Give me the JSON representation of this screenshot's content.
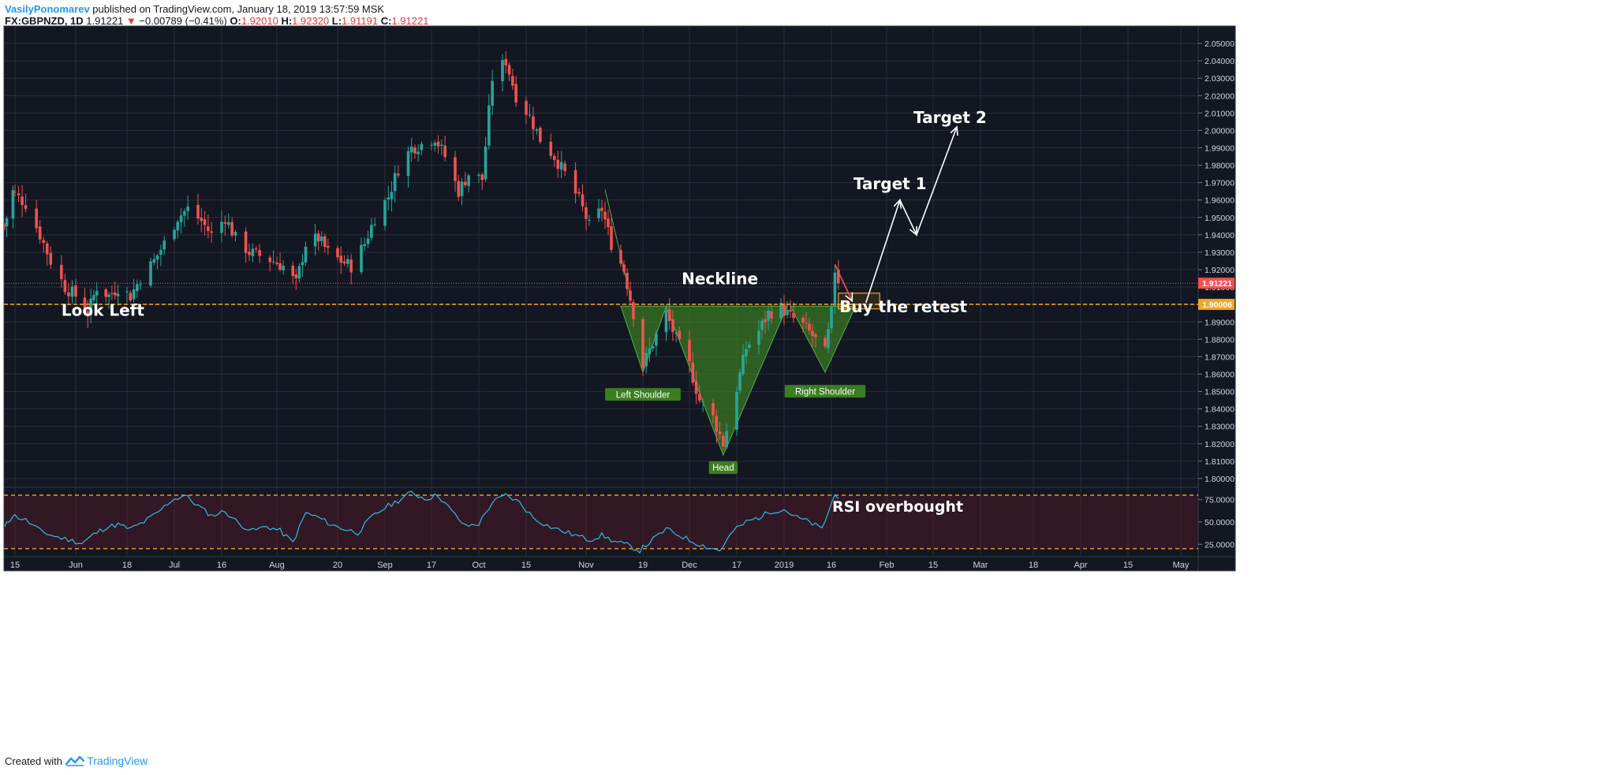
{
  "header": {
    "author": "VasilyPonomarev",
    "published": "published on TradingView.com, January 18, 2019 13:57:59 MSK",
    "symbol": "FX:GBPNZD, 1D",
    "last": "1.91221",
    "change": "−0.00789 (−0.41%)",
    "o_label": "O:",
    "o_value": "1.92010",
    "h_label": "H:",
    "h_value": "1.92320",
    "l_label": "L:",
    "l_value": "1.91191",
    "c_label": "C:",
    "c_value": "1.91221"
  },
  "footer": {
    "created": "Created with",
    "brand": "TradingView"
  },
  "colors": {
    "background": "#131722",
    "grid": "#2a2e39",
    "up": "#26a69a",
    "down": "#ef5350",
    "rsi_line": "#2dbce6",
    "level": "#f5a623",
    "pattern_fill": "#3c7d22",
    "text": "#d1d4dc"
  },
  "chart_data": {
    "type": "candlestick",
    "symbol": "FX:GBPNZD",
    "interval": "1D",
    "ylim": [
      1.795,
      2.055
    ],
    "price_ticks": [
      "1.80000",
      "1.81000",
      "1.82000",
      "1.83000",
      "1.84000",
      "1.85000",
      "1.86000",
      "1.87000",
      "1.88000",
      "1.89000",
      "1.90000",
      "1.91000",
      "1.92000",
      "1.93000",
      "1.94000",
      "1.95000",
      "1.96000",
      "1.97000",
      "1.98000",
      "1.99000",
      "2.00000",
      "2.01000",
      "2.02000",
      "2.03000",
      "2.04000",
      "2.05000"
    ],
    "price_tags": [
      {
        "value": 1.91221,
        "label": "1.91221",
        "color": "#ef5350"
      },
      {
        "value": 1.90006,
        "label": "1.90006",
        "color": "#f5a623"
      }
    ],
    "x_ticks": [
      {
        "label": "15",
        "date": "2018-05-15"
      },
      {
        "label": "Jun",
        "date": "2018-06-01"
      },
      {
        "label": "18",
        "date": "2018-06-18"
      },
      {
        "label": "Jul",
        "date": "2018-07-02"
      },
      {
        "label": "16",
        "date": "2018-07-16"
      },
      {
        "label": "Aug",
        "date": "2018-08-01"
      },
      {
        "label": "20",
        "date": "2018-08-20"
      },
      {
        "label": "Sep",
        "date": "2018-09-03"
      },
      {
        "label": "17",
        "date": "2018-09-17"
      },
      {
        "label": "Oct",
        "date": "2018-10-01"
      },
      {
        "label": "15",
        "date": "2018-10-15"
      },
      {
        "label": "Nov",
        "date": "2018-11-01"
      },
      {
        "label": "19",
        "date": "2018-11-19"
      },
      {
        "label": "Dec",
        "date": "2018-12-03"
      },
      {
        "label": "17",
        "date": "2018-12-17"
      },
      {
        "label": "2019",
        "date": "2019-01-01"
      },
      {
        "label": "16",
        "date": "2019-01-16"
      },
      {
        "label": "Feb",
        "date": "2019-02-01"
      },
      {
        "label": "15",
        "date": "2019-02-15"
      },
      {
        "label": "Mar",
        "date": "2019-03-01"
      },
      {
        "label": "18",
        "date": "2019-03-18"
      },
      {
        "label": "Apr",
        "date": "2019-04-01"
      },
      {
        "label": "15",
        "date": "2019-04-15"
      },
      {
        "label": "May",
        "date": "2019-05-01"
      }
    ],
    "close_path": [
      [
        "2018-05-10",
        1.945
      ],
      [
        "2018-05-14",
        1.965
      ],
      [
        "2018-05-18",
        1.958
      ],
      [
        "2018-05-22",
        1.94
      ],
      [
        "2018-05-25",
        1.925
      ],
      [
        "2018-05-29",
        1.91
      ],
      [
        "2018-06-01",
        1.905
      ],
      [
        "2018-06-05",
        1.895
      ],
      [
        "2018-06-08",
        1.91
      ],
      [
        "2018-06-12",
        1.905
      ],
      [
        "2018-06-15",
        1.91
      ],
      [
        "2018-06-19",
        1.905
      ],
      [
        "2018-06-22",
        1.915
      ],
      [
        "2018-06-26",
        1.925
      ],
      [
        "2018-06-29",
        1.935
      ],
      [
        "2018-07-03",
        1.95
      ],
      [
        "2018-07-06",
        1.955
      ],
      [
        "2018-07-10",
        1.948
      ],
      [
        "2018-07-13",
        1.94
      ],
      [
        "2018-07-17",
        1.95
      ],
      [
        "2018-07-20",
        1.938
      ],
      [
        "2018-07-24",
        1.93
      ],
      [
        "2018-07-27",
        1.928
      ],
      [
        "2018-07-31",
        1.925
      ],
      [
        "2018-08-03",
        1.922
      ],
      [
        "2018-08-07",
        1.912
      ],
      [
        "2018-08-10",
        1.935
      ],
      [
        "2018-08-14",
        1.938
      ],
      [
        "2018-08-17",
        1.93
      ],
      [
        "2018-08-21",
        1.925
      ],
      [
        "2018-08-24",
        1.922
      ],
      [
        "2018-08-28",
        1.935
      ],
      [
        "2018-08-31",
        1.95
      ],
      [
        "2018-09-04",
        1.962
      ],
      [
        "2018-09-07",
        1.978
      ],
      [
        "2018-09-11",
        1.99
      ],
      [
        "2018-09-14",
        1.992
      ],
      [
        "2018-09-18",
        1.996
      ],
      [
        "2018-09-21",
        1.985
      ],
      [
        "2018-09-25",
        1.965
      ],
      [
        "2018-09-28",
        1.975
      ],
      [
        "2018-10-02",
        1.972
      ],
      [
        "2018-10-05",
        2.03
      ],
      [
        "2018-10-09",
        2.04
      ],
      [
        "2018-10-12",
        2.02
      ],
      [
        "2018-10-16",
        2.008
      ],
      [
        "2018-10-19",
        1.995
      ],
      [
        "2018-10-23",
        1.985
      ],
      [
        "2018-10-26",
        1.975
      ],
      [
        "2018-10-30",
        1.96
      ],
      [
        "2018-11-02",
        1.945
      ],
      [
        "2018-11-06",
        1.955
      ],
      [
        "2018-11-09",
        1.935
      ],
      [
        "2018-11-13",
        1.92
      ],
      [
        "2018-11-16",
        1.895
      ],
      [
        "2018-11-19",
        1.865
      ],
      [
        "2018-11-22",
        1.878
      ],
      [
        "2018-11-26",
        1.895
      ],
      [
        "2018-11-29",
        1.88
      ],
      [
        "2018-12-03",
        1.865
      ],
      [
        "2018-12-06",
        1.845
      ],
      [
        "2018-12-10",
        1.835
      ],
      [
        "2018-12-13",
        1.82
      ],
      [
        "2018-12-17",
        1.852
      ],
      [
        "2018-12-20",
        1.875
      ],
      [
        "2018-12-24",
        1.885
      ],
      [
        "2018-12-27",
        1.895
      ],
      [
        "2018-12-31",
        1.898
      ],
      [
        "2019-01-03",
        1.893
      ],
      [
        "2019-01-07",
        1.888
      ],
      [
        "2019-01-10",
        1.882
      ],
      [
        "2019-01-14",
        1.872
      ],
      [
        "2019-01-16",
        1.895
      ],
      [
        "2019-01-17",
        1.92
      ],
      [
        "2019-01-18",
        1.91221
      ]
    ],
    "levels": [
      {
        "value": 1.90006,
        "label": "Neckline"
      },
      {
        "value": 1.91221
      }
    ],
    "pattern": "inverse head and shoulders",
    "pattern_points": {
      "left_shoulder": {
        "date": "2018-11-19",
        "price": 1.861,
        "label": "Left Shoulder"
      },
      "head": {
        "date": "2018-12-13",
        "price": 1.8135,
        "label": "Head"
      },
      "right_shoulder": {
        "date": "2019-01-14",
        "price": 1.861,
        "label": "Right Shoulder"
      }
    },
    "projection": [
      [
        "2019-01-17",
        1.923
      ],
      [
        "2019-01-22",
        1.902
      ],
      [
        "2019-01-26",
        1.901
      ],
      [
        "2019-02-05",
        1.96
      ],
      [
        "2019-02-10",
        1.94
      ],
      [
        "2019-02-22",
        2.002
      ]
    ],
    "annotations": [
      {
        "text": "Look Left",
        "date": "2018-06-10",
        "price": 1.8935
      },
      {
        "text": "Neckline",
        "date": "2018-12-12",
        "price": 1.9116
      },
      {
        "text": "Buy the retest",
        "date": "2019-02-06",
        "price": 1.8955
      },
      {
        "text": "Target 1",
        "date": "2019-02-02",
        "price": 1.9662
      },
      {
        "text": "Target 2",
        "date": "2019-02-20",
        "price": 2.0043
      }
    ],
    "retest_box": {
      "date_from": "2019-01-18",
      "date_to": "2019-01-30",
      "price_from": 1.8975,
      "price_to": 1.9065
    },
    "rsi": {
      "ylim": [
        12,
        88
      ],
      "ticks": [
        "25.0000",
        "50.0000",
        "75.0000"
      ],
      "overbought": 80,
      "oversold": 20,
      "annotation": "RSI overbought",
      "values": [
        [
          "2018-05-10",
          44
        ],
        [
          "2018-05-14",
          58
        ],
        [
          "2018-05-18",
          52
        ],
        [
          "2018-05-22",
          40
        ],
        [
          "2018-05-26",
          34
        ],
        [
          "2018-05-30",
          30
        ],
        [
          "2018-06-03",
          26
        ],
        [
          "2018-06-07",
          36
        ],
        [
          "2018-06-11",
          44
        ],
        [
          "2018-06-15",
          47
        ],
        [
          "2018-06-19",
          42
        ],
        [
          "2018-06-23",
          50
        ],
        [
          "2018-06-27",
          60
        ],
        [
          "2018-07-01",
          74
        ],
        [
          "2018-07-05",
          80
        ],
        [
          "2018-07-09",
          68
        ],
        [
          "2018-07-13",
          57
        ],
        [
          "2018-07-17",
          62
        ],
        [
          "2018-07-21",
          48
        ],
        [
          "2018-07-25",
          40
        ],
        [
          "2018-07-29",
          45
        ],
        [
          "2018-08-02",
          40
        ],
        [
          "2018-08-06",
          27
        ],
        [
          "2018-08-10",
          60
        ],
        [
          "2018-08-14",
          55
        ],
        [
          "2018-08-18",
          47
        ],
        [
          "2018-08-22",
          42
        ],
        [
          "2018-08-26",
          38
        ],
        [
          "2018-08-30",
          55
        ],
        [
          "2018-09-03",
          66
        ],
        [
          "2018-09-07",
          74
        ],
        [
          "2018-09-11",
          83
        ],
        [
          "2018-09-15",
          76
        ],
        [
          "2018-09-19",
          80
        ],
        [
          "2018-09-23",
          62
        ],
        [
          "2018-09-27",
          45
        ],
        [
          "2018-10-01",
          48
        ],
        [
          "2018-10-05",
          72
        ],
        [
          "2018-10-09",
          80
        ],
        [
          "2018-10-13",
          72
        ],
        [
          "2018-10-17",
          55
        ],
        [
          "2018-10-21",
          46
        ],
        [
          "2018-10-25",
          40
        ],
        [
          "2018-10-29",
          35
        ],
        [
          "2018-11-02",
          30
        ],
        [
          "2018-11-06",
          35
        ],
        [
          "2018-11-10",
          28
        ],
        [
          "2018-11-14",
          24
        ],
        [
          "2018-11-18",
          18
        ],
        [
          "2018-11-22",
          30
        ],
        [
          "2018-11-26",
          42
        ],
        [
          "2018-11-30",
          35
        ],
        [
          "2018-12-04",
          28
        ],
        [
          "2018-12-08",
          22
        ],
        [
          "2018-12-12",
          18
        ],
        [
          "2018-12-16",
          40
        ],
        [
          "2018-12-20",
          50
        ],
        [
          "2018-12-24",
          55
        ],
        [
          "2018-12-28",
          62
        ],
        [
          "2019-01-01",
          64
        ],
        [
          "2019-01-05",
          55
        ],
        [
          "2019-01-09",
          50
        ],
        [
          "2019-01-13",
          42
        ],
        [
          "2019-01-17",
          80
        ],
        [
          "2019-01-18",
          76
        ]
      ]
    }
  }
}
